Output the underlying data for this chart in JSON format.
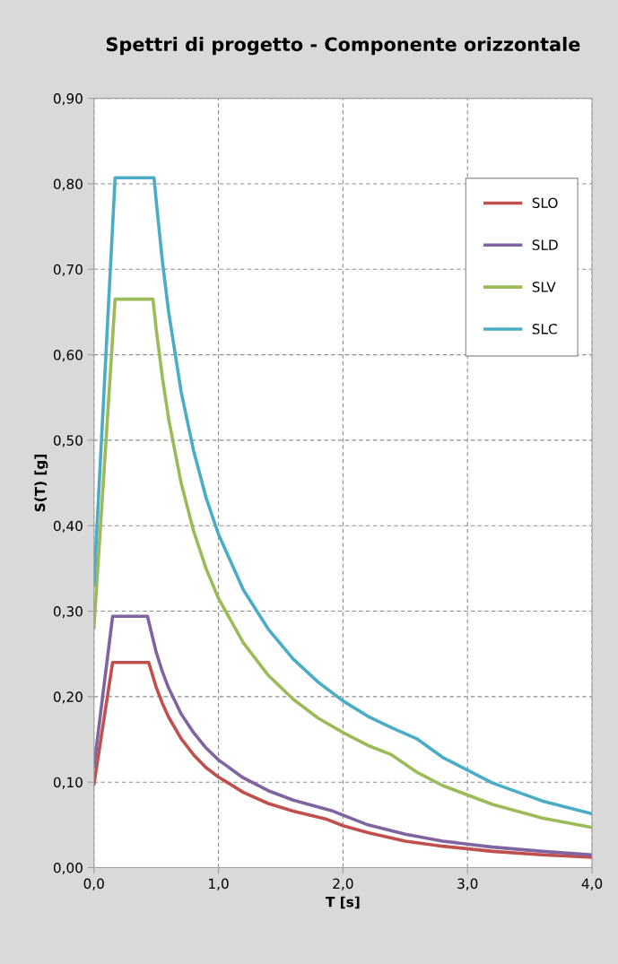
{
  "chart_data": {
    "type": "line",
    "title": "Spettri di progetto - Componente orizzontale",
    "xlabel": "T [s]",
    "ylabel": "S(T) [g]",
    "xlim": [
      0,
      4
    ],
    "xticks": [
      {
        "value": 0,
        "label": "0,0"
      },
      {
        "value": 1,
        "label": "1,0"
      },
      {
        "value": 2,
        "label": "2,0"
      },
      {
        "value": 3,
        "label": "3,0"
      },
      {
        "value": 4,
        "label": "4,0"
      }
    ],
    "ylim": [
      0,
      0.9
    ],
    "yticks": [
      {
        "value": 0,
        "label": "0,00"
      },
      {
        "value": 0.1,
        "label": "0,10"
      },
      {
        "value": 0.2,
        "label": "0,20"
      },
      {
        "value": 0.3,
        "label": "0,30"
      },
      {
        "value": 0.4,
        "label": "0,40"
      },
      {
        "value": 0.5,
        "label": "0,50"
      },
      {
        "value": 0.6,
        "label": "0,60"
      },
      {
        "value": 0.7,
        "label": "0,70"
      },
      {
        "value": 0.8,
        "label": "0,80"
      },
      {
        "value": 0.9,
        "label": "0,90"
      }
    ],
    "grid": true,
    "legend": "top right",
    "marker": "none",
    "line_style": "solid",
    "series": [
      {
        "name": "SLO",
        "color": "#c0504d",
        "x": [
          0,
          0.15,
          0.44,
          0.5,
          0.55,
          0.6,
          0.7,
          0.8,
          0.9,
          1.0,
          1.2,
          1.4,
          1.6,
          1.86,
          2.0,
          2.2,
          2.5,
          2.8,
          3.2,
          3.6,
          4.0
        ],
        "values": [
          0.097,
          0.24,
          0.24,
          0.211,
          0.192,
          0.176,
          0.151,
          0.132,
          0.117,
          0.106,
          0.088,
          0.075,
          0.066,
          0.057,
          0.049,
          0.041,
          0.031,
          0.025,
          0.019,
          0.015,
          0.012
        ]
      },
      {
        "name": "SLD",
        "color": "#8064a2",
        "x": [
          0,
          0.15,
          0.43,
          0.5,
          0.55,
          0.6,
          0.7,
          0.8,
          0.9,
          1.0,
          1.2,
          1.4,
          1.6,
          1.92,
          2.2,
          2.5,
          2.8,
          3.2,
          3.6,
          4.0
        ],
        "values": [
          0.118,
          0.294,
          0.294,
          0.252,
          0.229,
          0.21,
          0.18,
          0.158,
          0.14,
          0.126,
          0.105,
          0.09,
          0.079,
          0.066,
          0.05,
          0.039,
          0.031,
          0.024,
          0.019,
          0.015
        ]
      },
      {
        "name": "SLV",
        "color": "#9bbb59",
        "x": [
          0,
          0.17,
          0.474,
          0.5,
          0.55,
          0.6,
          0.7,
          0.8,
          0.9,
          1.0,
          1.2,
          1.4,
          1.6,
          1.8,
          2.0,
          2.2,
          2.39,
          2.6,
          2.8,
          3.2,
          3.6,
          4.0
        ],
        "values": [
          0.28,
          0.665,
          0.665,
          0.63,
          0.573,
          0.525,
          0.45,
          0.394,
          0.35,
          0.315,
          0.263,
          0.225,
          0.197,
          0.175,
          0.158,
          0.143,
          0.132,
          0.111,
          0.096,
          0.074,
          0.058,
          0.047
        ]
      },
      {
        "name": "SLC",
        "color": "#4bacc6",
        "x": [
          0,
          0.17,
          0.483,
          0.5,
          0.55,
          0.6,
          0.7,
          0.8,
          0.9,
          1.0,
          1.2,
          1.4,
          1.6,
          1.8,
          2.0,
          2.2,
          2.4,
          2.59,
          2.8,
          3.2,
          3.6,
          4.0
        ],
        "values": [
          0.33,
          0.807,
          0.807,
          0.78,
          0.709,
          0.65,
          0.557,
          0.488,
          0.433,
          0.39,
          0.325,
          0.279,
          0.244,
          0.217,
          0.195,
          0.177,
          0.163,
          0.151,
          0.129,
          0.099,
          0.078,
          0.063
        ]
      }
    ]
  }
}
